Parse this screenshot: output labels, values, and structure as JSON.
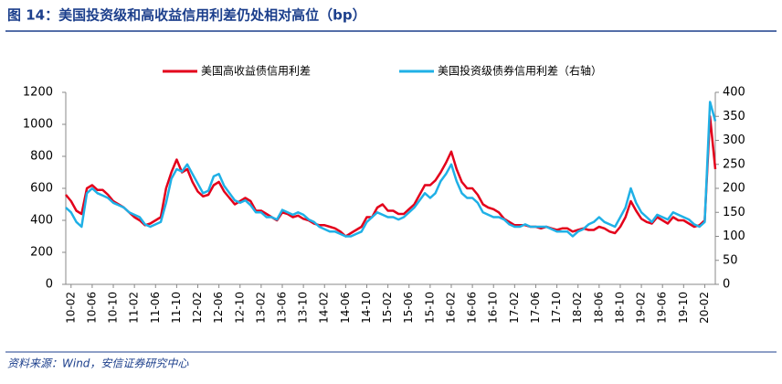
{
  "chart_data": {
    "type": "line",
    "title": "图 14：美国投资级和高收益信用利差仍处相对高位（bp）",
    "source": "资料来源：Wind，安信证券研究中心",
    "categories": [
      null,
      "10-02",
      null,
      null,
      null,
      "10-06",
      null,
      null,
      null,
      "10-10",
      null,
      null,
      null,
      "11-02",
      null,
      null,
      null,
      "11-06",
      null,
      null,
      null,
      "11-10",
      null,
      null,
      null,
      "12-02",
      null,
      null,
      null,
      "12-06",
      null,
      null,
      null,
      "12-10",
      null,
      null,
      null,
      "13-02",
      null,
      null,
      null,
      "13-06",
      null,
      null,
      null,
      "13-10",
      null,
      null,
      null,
      "14-02",
      null,
      null,
      null,
      "14-06",
      null,
      null,
      null,
      "14-10",
      null,
      null,
      null,
      "15-02",
      null,
      null,
      null,
      "15-06",
      null,
      null,
      null,
      "15-10",
      null,
      null,
      null,
      "16-02",
      null,
      null,
      null,
      "16-06",
      null,
      null,
      null,
      "16-10",
      null,
      null,
      null,
      "17-02",
      null,
      null,
      null,
      "17-06",
      null,
      null,
      null,
      "17-10",
      null,
      null,
      null,
      "18-02",
      null,
      null,
      null,
      "18-06",
      null,
      null,
      null,
      "18-10",
      null,
      null,
      null,
      "19-02",
      null,
      null,
      null,
      "19-06",
      null,
      null,
      null,
      "19-10",
      null,
      null,
      null,
      "20-02",
      null,
      null
    ],
    "series": [
      {
        "name": "美国高收益债信用利差",
        "color": "#e3001b",
        "axis": "y",
        "values": [
          560,
          520,
          460,
          440,
          600,
          620,
          590,
          590,
          560,
          520,
          500,
          480,
          450,
          420,
          400,
          370,
          380,
          400,
          420,
          600,
          700,
          780,
          700,
          720,
          640,
          580,
          550,
          560,
          620,
          640,
          580,
          540,
          500,
          520,
          540,
          520,
          460,
          460,
          440,
          420,
          400,
          450,
          440,
          420,
          430,
          410,
          400,
          380,
          370,
          370,
          360,
          350,
          330,
          300,
          320,
          340,
          360,
          420,
          420,
          480,
          500,
          460,
          460,
          440,
          440,
          470,
          500,
          560,
          620,
          620,
          650,
          700,
          760,
          830,
          720,
          640,
          600,
          600,
          560,
          500,
          480,
          470,
          450,
          410,
          390,
          370,
          370,
          370,
          360,
          360,
          350,
          360,
          350,
          340,
          350,
          350,
          330,
          340,
          350,
          340,
          340,
          360,
          350,
          330,
          320,
          360,
          420,
          520,
          460,
          410,
          390,
          380,
          420,
          400,
          380,
          420,
          400,
          400,
          380,
          360,
          370,
          400,
          1050,
          720
        ]
      },
      {
        "name": "美国投资级债券信用利差（右轴）",
        "color": "#1fb0e6",
        "axis": "y2",
        "values": [
          160,
          150,
          130,
          120,
          190,
          200,
          190,
          185,
          180,
          170,
          165,
          160,
          150,
          145,
          140,
          125,
          120,
          125,
          130,
          170,
          220,
          240,
          235,
          250,
          230,
          210,
          190,
          195,
          225,
          230,
          205,
          190,
          175,
          170,
          175,
          165,
          150,
          150,
          140,
          140,
          135,
          155,
          150,
          145,
          150,
          145,
          135,
          130,
          120,
          115,
          110,
          110,
          105,
          100,
          100,
          105,
          110,
          130,
          140,
          150,
          145,
          140,
          140,
          135,
          140,
          150,
          160,
          175,
          190,
          180,
          190,
          215,
          230,
          250,
          215,
          190,
          180,
          180,
          170,
          150,
          145,
          140,
          140,
          135,
          125,
          120,
          120,
          125,
          120,
          120,
          120,
          120,
          115,
          110,
          110,
          110,
          100,
          110,
          115,
          125,
          130,
          140,
          130,
          125,
          120,
          140,
          160,
          200,
          170,
          150,
          140,
          130,
          145,
          140,
          135,
          150,
          145,
          140,
          135,
          125,
          120,
          130,
          380,
          340
        ]
      }
    ],
    "ylim": [
      0,
      1200
    ],
    "yticks": [
      0,
      200,
      400,
      600,
      800,
      1000,
      1200
    ],
    "y2lim": [
      0,
      400
    ],
    "y2ticks": [
      0,
      50,
      100,
      150,
      200,
      250,
      300,
      350,
      400
    ],
    "grid": false,
    "legend": "top"
  }
}
